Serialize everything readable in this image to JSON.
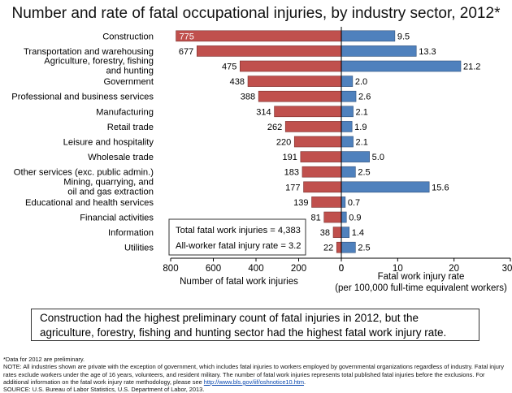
{
  "title": "Number and rate of fatal occupational injuries, by industry sector, 2012*",
  "chart_data": {
    "type": "bar",
    "orientation": "horizontal",
    "panels": [
      {
        "name": "Number of fatal work injuries",
        "xlim": [
          0,
          800
        ],
        "direction": "leftward",
        "ticks": [
          800,
          600,
          400,
          200,
          0
        ],
        "color": "#c0504d"
      },
      {
        "name": "Fatal work injury rate",
        "xlim": [
          0,
          30
        ],
        "direction": "rightward",
        "ticks": [
          0,
          10,
          20,
          30
        ],
        "color": "#4f81bd"
      }
    ],
    "categories": [
      "Construction",
      "Transportation and warehousing",
      "Agriculture, forestry, fishing\nand hunting",
      "Government",
      "Professional and business services",
      "Manufacturing",
      "Retail trade",
      "Leisure and hospitality",
      "Wholesale trade",
      "Other services (exc. public admin.)",
      "Mining, quarrying, and\noil and gas extraction",
      "Educational and health services",
      "Financial activities",
      "Information",
      "Utilities"
    ],
    "series": [
      {
        "name": "Number of fatal work injuries",
        "values": [
          775,
          677,
          475,
          438,
          388,
          314,
          262,
          220,
          191,
          183,
          177,
          139,
          81,
          38,
          22
        ],
        "labels": [
          "775",
          "677",
          "475",
          "438",
          "388",
          "314",
          "262",
          "220",
          "191",
          "183",
          "177",
          "139",
          "81",
          "38",
          "22"
        ]
      },
      {
        "name": "Fatal work injury rate",
        "values": [
          9.5,
          13.3,
          21.2,
          2.0,
          2.6,
          2.1,
          1.9,
          2.1,
          5.0,
          2.5,
          15.6,
          0.7,
          0.9,
          1.4,
          2.5
        ],
        "labels": [
          "9.5",
          "13.3",
          "21.2",
          "2.0",
          "2.6",
          "2.1",
          "1.9",
          "2.1",
          "5.0",
          "2.5",
          "15.6",
          "0.7",
          "0.9",
          "1.4",
          "2.5"
        ]
      }
    ],
    "xlabel_left": "Number of fatal work injuries",
    "xlabel_right_line1": "Fatal work injury rate",
    "xlabel_right_line2": "(per 100,000 full-time equivalent workers)",
    "totals_box": {
      "total_injuries": "Total fatal work injuries = 4,383",
      "all_worker_rate": "All-worker fatal injury rate = 3.2"
    },
    "grid": false
  },
  "callout": "Construction had the highest preliminary count of fatal injuries in 2012, but the agriculture, forestry, fishing and hunting sector had the highest fatal work injury rate.",
  "footnotes": {
    "data_note": "*Data for 2012 are preliminary.",
    "note_prefix": "NOTE: All industries shown are private with the exception of government, which includes fatal injuries to workers employed by governmental organizations regardless of industry.  Fatal injury rates exclude workers under the age of 16 years, volunteers, and resident military. The number of fatal work injuries represents total published fatal injuries before the exclusions. For additional information on the fatal work injury rate methodology, please see ",
    "note_link": "http://www.bls.gov/iif/oshnotice10.htm",
    "note_suffix": ".",
    "source": "SOURCE: U.S. Bureau of Labor Statistics, U.S. Department of Labor, 2013."
  }
}
